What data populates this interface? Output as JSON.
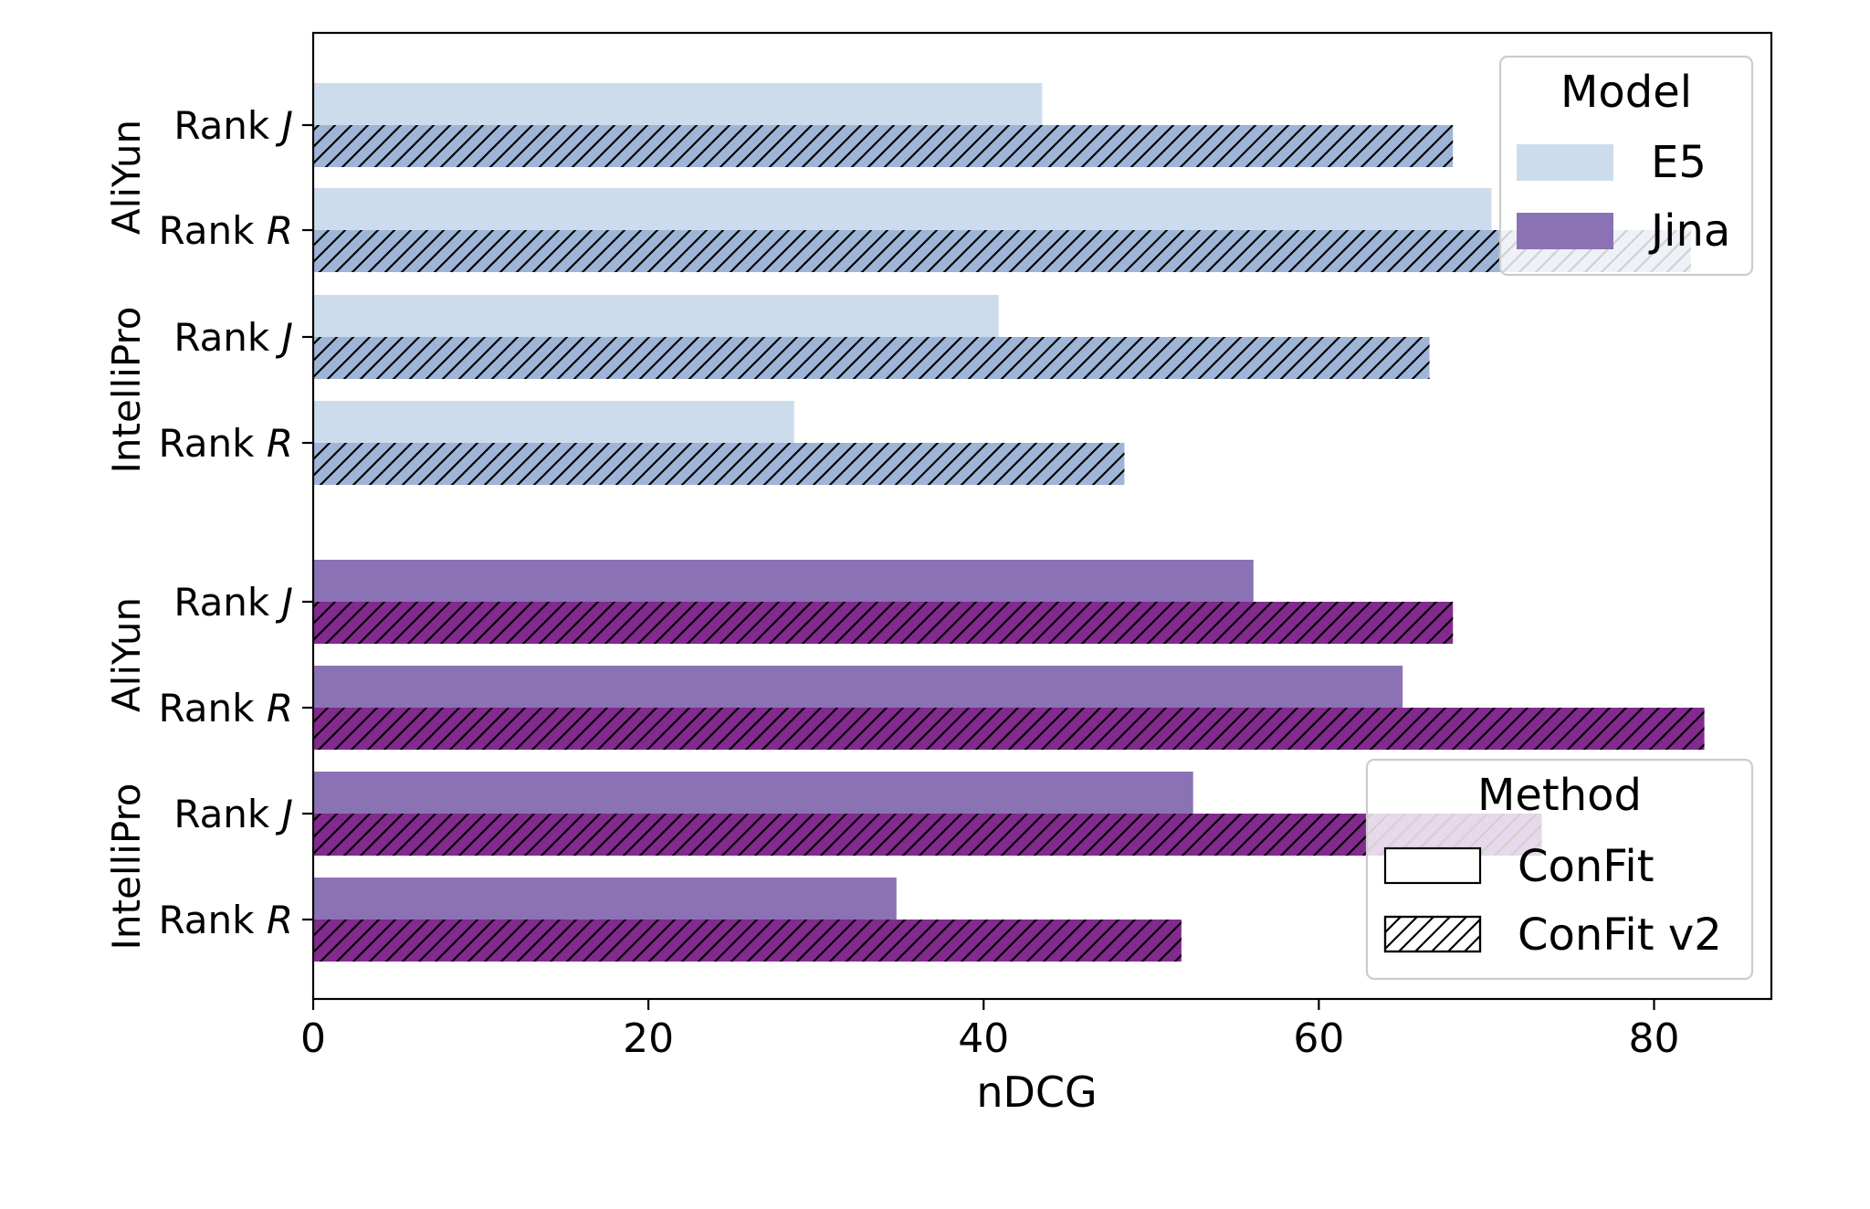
{
  "chart_data": {
    "type": "bar",
    "orientation": "horizontal",
    "xlabel": "nDCG",
    "xlim": [
      0,
      87
    ],
    "xticks": [
      0,
      20,
      40,
      60,
      80
    ],
    "grid": false,
    "colors": {
      "E5": {
        "ConFit": "#cddcec",
        "ConFit v2": "#9fb5d8"
      },
      "Jina": {
        "ConFit": "#8b72b4",
        "ConFit v2": "#822a8e"
      }
    },
    "rows": [
      {
        "model": "E5",
        "dataset": "AliYun",
        "label_main": "Rank ",
        "label_var": "J",
        "ConFit": 43.5,
        "ConFit v2": 68.0
      },
      {
        "model": "E5",
        "dataset": "AliYun",
        "label_main": "Rank ",
        "label_var": "R",
        "ConFit": 70.3,
        "ConFit v2": 82.2
      },
      {
        "model": "E5",
        "dataset": "IntelliPro",
        "label_main": "Rank ",
        "label_var": "J",
        "ConFit": 40.9,
        "ConFit v2": 66.6
      },
      {
        "model": "E5",
        "dataset": "IntelliPro",
        "label_main": "Rank ",
        "label_var": "R",
        "ConFit": 28.7,
        "ConFit v2": 48.4
      },
      {
        "model": "Jina",
        "dataset": "AliYun",
        "label_main": "Rank ",
        "label_var": "J",
        "ConFit": 56.1,
        "ConFit v2": 68.0
      },
      {
        "model": "Jina",
        "dataset": "AliYun",
        "label_main": "Rank ",
        "label_var": "R",
        "ConFit": 65.0,
        "ConFit v2": 83.0
      },
      {
        "model": "Jina",
        "dataset": "IntelliPro",
        "label_main": "Rank ",
        "label_var": "J",
        "ConFit": 52.5,
        "ConFit v2": 73.3
      },
      {
        "model": "Jina",
        "dataset": "IntelliPro",
        "label_main": "Rank ",
        "label_var": "R",
        "ConFit": 34.8,
        "ConFit v2": 51.8
      }
    ],
    "groups": [
      "AliYun",
      "IntelliPro",
      "AliYun",
      "IntelliPro"
    ],
    "legends": [
      {
        "title": "Model",
        "placement": "top-right",
        "entries": [
          "E5",
          "Jina"
        ]
      },
      {
        "title": "Method",
        "placement": "bottom-right",
        "entries": [
          "ConFit",
          "ConFit v2"
        ]
      }
    ]
  }
}
